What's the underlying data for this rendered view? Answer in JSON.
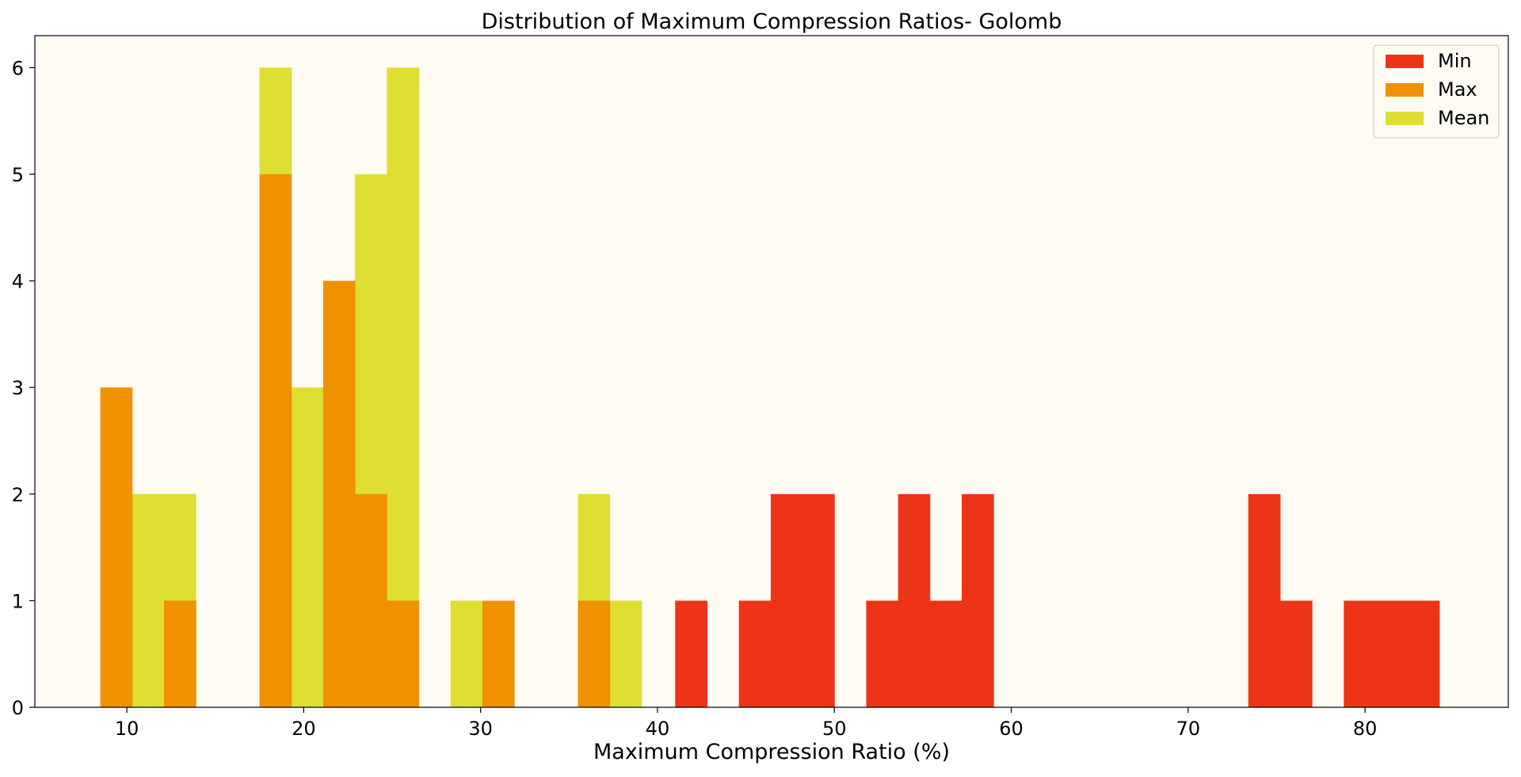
{
  "chart_data": {
    "type": "bar",
    "title": "Distribution of Maximum Compression Ratios- Golomb",
    "xlabel": "Maximum Compression Ratio (%)",
    "ylabel": "",
    "xlim": [
      4.8,
      88.1
    ],
    "ylim": [
      0,
      6.3
    ],
    "xticks": [
      10,
      20,
      30,
      40,
      50,
      60,
      70,
      80
    ],
    "yticks": [
      0,
      1,
      2,
      3,
      4,
      5,
      6
    ],
    "bin_width": 1.8,
    "grid": false,
    "legend_position": "top-right",
    "background": "#fefbf3",
    "series": [
      {
        "name": "Min",
        "color": "#ee3416",
        "bins": [
          {
            "x0": 41.0,
            "x1": 42.8,
            "count": 1
          },
          {
            "x0": 44.6,
            "x1": 46.4,
            "count": 1
          },
          {
            "x0": 46.4,
            "x1": 48.2,
            "count": 2
          },
          {
            "x0": 48.2,
            "x1": 50.0,
            "count": 2
          },
          {
            "x0": 51.8,
            "x1": 53.6,
            "count": 1
          },
          {
            "x0": 53.6,
            "x1": 55.4,
            "count": 2
          },
          {
            "x0": 55.4,
            "x1": 57.2,
            "count": 1
          },
          {
            "x0": 57.2,
            "x1": 59.0,
            "count": 2
          },
          {
            "x0": 73.4,
            "x1": 75.2,
            "count": 2
          },
          {
            "x0": 75.2,
            "x1": 77.0,
            "count": 1
          },
          {
            "x0": 78.8,
            "x1": 80.6,
            "count": 1
          },
          {
            "x0": 80.6,
            "x1": 82.4,
            "count": 1
          },
          {
            "x0": 82.4,
            "x1": 84.2,
            "count": 1
          }
        ]
      },
      {
        "name": "Max",
        "color": "#f09100",
        "bins": [
          {
            "x0": 8.5,
            "x1": 10.3,
            "count": 3
          },
          {
            "x0": 12.1,
            "x1": 13.9,
            "count": 1
          },
          {
            "x0": 17.5,
            "x1": 19.3,
            "count": 5
          },
          {
            "x0": 21.1,
            "x1": 22.9,
            "count": 4
          },
          {
            "x0": 22.9,
            "x1": 24.7,
            "count": 2
          },
          {
            "x0": 24.7,
            "x1": 26.5,
            "count": 1
          },
          {
            "x0": 30.1,
            "x1": 31.9,
            "count": 1
          },
          {
            "x0": 35.5,
            "x1": 37.3,
            "count": 1
          }
        ]
      },
      {
        "name": "Mean",
        "color": "#dede33",
        "bins": [
          {
            "x0": 10.3,
            "x1": 12.1,
            "count": 2
          },
          {
            "x0": 12.1,
            "x1": 13.9,
            "count": 2
          },
          {
            "x0": 17.5,
            "x1": 19.3,
            "count": 6
          },
          {
            "x0": 19.3,
            "x1": 21.1,
            "count": 3
          },
          {
            "x0": 22.9,
            "x1": 24.7,
            "count": 5
          },
          {
            "x0": 24.7,
            "x1": 26.5,
            "count": 6
          },
          {
            "x0": 28.3,
            "x1": 30.1,
            "count": 1
          },
          {
            "x0": 35.5,
            "x1": 37.3,
            "count": 2
          },
          {
            "x0": 37.3,
            "x1": 39.1,
            "count": 1
          }
        ]
      }
    ],
    "draw_order": [
      "Mean",
      "Max",
      "Min"
    ]
  }
}
